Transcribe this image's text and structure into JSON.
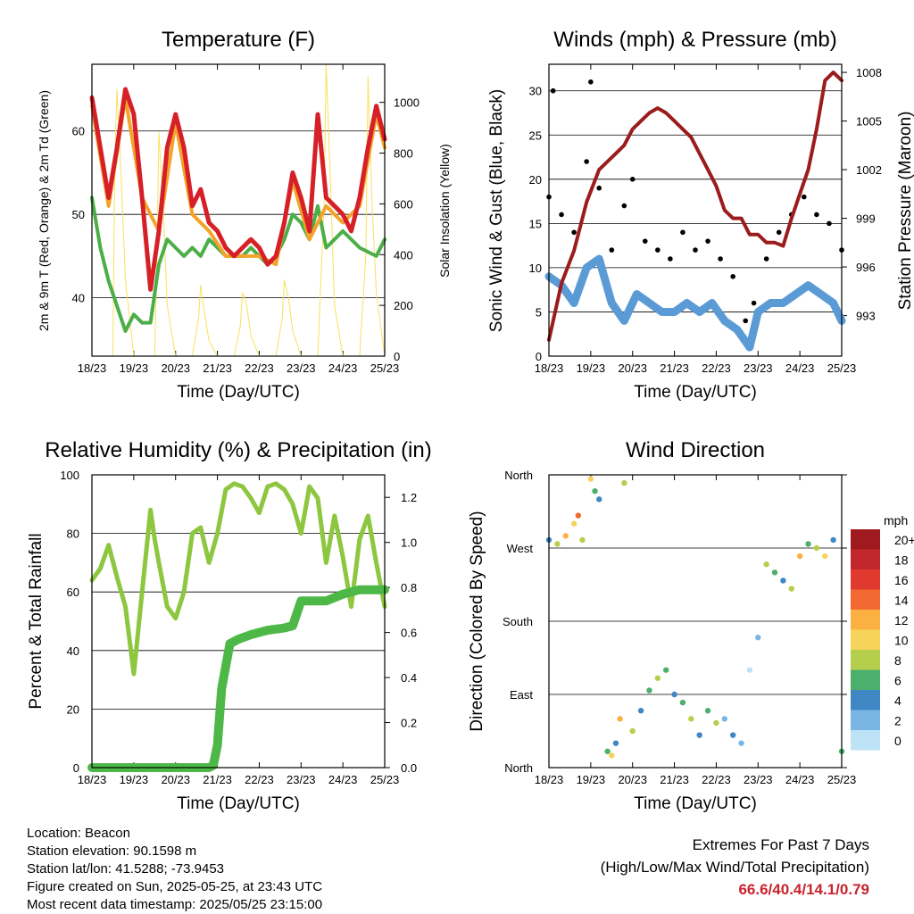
{
  "x_ticks": [
    "18/23",
    "19/23",
    "20/23",
    "21/23",
    "22/23",
    "23/23",
    "24/23",
    "25/23"
  ],
  "colors": {
    "red": "#d62027",
    "orange": "#f4a32a",
    "green": "#4cae47",
    "yellow": "#f7e15c",
    "black": "#000000",
    "blue": "#5b9bd5",
    "maroon": "#9b1c1c",
    "rh": "#8dc63f",
    "precip": "#4db848"
  },
  "chart_data": [
    {
      "id": "temperature",
      "type": "line",
      "title": "Temperature (F)",
      "xlabel": "Time (Day/UTC)",
      "ylabel": "2m & 9m T (Red, Orange) & 2m Td (Green)",
      "ylabel_right": "Solar Insolation (Yellow)",
      "ylim": [
        33,
        68
      ],
      "yticks": [
        40,
        50,
        60
      ],
      "ylim_right": [
        0,
        1150
      ],
      "yticks_right": [
        0,
        200,
        400,
        600,
        800,
        1000
      ],
      "series": [
        {
          "name": "2m T",
          "color": "red",
          "x": [
            0,
            0.2,
            0.4,
            0.6,
            0.8,
            1.0,
            1.2,
            1.4,
            1.6,
            1.8,
            2.0,
            2.2,
            2.4,
            2.6,
            2.8,
            3.0,
            3.2,
            3.4,
            3.6,
            3.8,
            4.0,
            4.2,
            4.4,
            4.6,
            4.8,
            5.0,
            5.2,
            5.4,
            5.6,
            5.8,
            6.0,
            6.2,
            6.4,
            6.6,
            6.8,
            7.0
          ],
          "y": [
            64,
            58,
            52,
            58,
            65,
            62,
            52,
            41,
            48,
            58,
            62,
            58,
            51,
            53,
            49,
            48,
            46,
            45,
            46,
            47,
            46,
            44,
            45,
            49,
            55,
            52,
            48,
            62,
            52,
            51,
            50,
            48,
            52,
            58,
            63,
            59
          ]
        },
        {
          "name": "9m T",
          "color": "orange",
          "x": [
            0,
            0.4,
            0.8,
            1.2,
            1.6,
            2.0,
            2.4,
            2.8,
            3.2,
            3.6,
            4.0,
            4.4,
            4.8,
            5.2,
            5.6,
            6.0,
            6.4,
            6.8,
            7.0
          ],
          "y": [
            63,
            51,
            64,
            52,
            48,
            61,
            50,
            48,
            45,
            45,
            45,
            44,
            54,
            47,
            51,
            49,
            51,
            62,
            58
          ]
        },
        {
          "name": "2m Td",
          "color": "green",
          "x": [
            0,
            0.2,
            0.4,
            0.6,
            0.8,
            1.0,
            1.2,
            1.4,
            1.6,
            1.8,
            2.0,
            2.2,
            2.4,
            2.6,
            2.8,
            3.0,
            3.2,
            3.4,
            3.6,
            3.8,
            4.0,
            4.2,
            4.4,
            4.6,
            4.8,
            5.0,
            5.2,
            5.4,
            5.6,
            5.8,
            6.0,
            6.4,
            6.8,
            7.0
          ],
          "y": [
            52,
            46,
            42,
            39,
            36,
            38,
            37,
            37,
            44,
            47,
            46,
            45,
            46,
            45,
            47,
            46,
            45,
            45,
            45,
            46,
            45,
            44,
            45,
            47,
            50,
            49,
            47,
            51,
            46,
            47,
            48,
            46,
            45,
            47
          ]
        },
        {
          "name": "Solar Insolation",
          "color": "yellow",
          "axis": "right",
          "x": [
            0,
            0.3,
            0.5,
            0.55,
            0.6,
            0.7,
            0.8,
            1.0,
            1.3,
            1.5,
            1.55,
            1.6,
            1.7,
            1.8,
            2.0,
            2.4,
            2.55,
            2.6,
            2.7,
            2.8,
            3.0,
            3.4,
            3.55,
            3.6,
            3.7,
            3.8,
            4.0,
            4.4,
            4.55,
            4.6,
            4.7,
            4.8,
            5.0,
            5.4,
            5.55,
            5.6,
            5.7,
            5.8,
            6.0,
            6.4,
            6.55,
            6.6,
            6.7,
            6.8,
            7.0
          ],
          "y": [
            0,
            0,
            0,
            800,
            1050,
            700,
            300,
            0,
            0,
            0,
            350,
            880,
            600,
            200,
            0,
            0,
            150,
            280,
            160,
            60,
            0,
            0,
            120,
            250,
            200,
            80,
            0,
            0,
            150,
            300,
            230,
            100,
            0,
            0,
            600,
            1150,
            700,
            200,
            0,
            0,
            400,
            1100,
            600,
            250,
            0
          ]
        }
      ]
    },
    {
      "id": "winds",
      "type": "scatter",
      "title": "Winds (mph) & Pressure (mb)",
      "xlabel": "Time (Day/UTC)",
      "ylabel": "Sonic Wind & Gust (Blue, Black)",
      "ylabel_right": "Station Pressure (Maroon)",
      "ylim": [
        0,
        33
      ],
      "yticks": [
        0,
        5,
        10,
        15,
        20,
        25,
        30
      ],
      "ylim_right": [
        990.5,
        1008.5
      ],
      "yticks_right": [
        993,
        996,
        999,
        1002,
        1005,
        1008
      ],
      "series": [
        {
          "name": "Sonic Wind",
          "color": "blue",
          "x": [
            0,
            0.3,
            0.6,
            0.9,
            1.2,
            1.5,
            1.8,
            2.1,
            2.4,
            2.7,
            3.0,
            3.3,
            3.6,
            3.9,
            4.2,
            4.5,
            4.8,
            5.0,
            5.3,
            5.6,
            5.9,
            6.2,
            6.5,
            6.8,
            7.0
          ],
          "y": [
            9,
            8,
            6,
            10,
            11,
            6,
            4,
            7,
            6,
            5,
            5,
            6,
            5,
            6,
            4,
            3,
            1,
            5,
            6,
            6,
            7,
            8,
            7,
            6,
            4
          ]
        },
        {
          "name": "Gust",
          "color": "black",
          "x": [
            0,
            0.1,
            0.3,
            0.6,
            0.9,
            1.0,
            1.2,
            1.5,
            1.8,
            2.0,
            2.3,
            2.6,
            2.9,
            3.2,
            3.5,
            3.8,
            4.1,
            4.4,
            4.7,
            4.9,
            5.2,
            5.5,
            5.8,
            6.1,
            6.4,
            6.7,
            7.0
          ],
          "y": [
            18,
            30,
            16,
            14,
            22,
            31,
            19,
            12,
            17,
            20,
            13,
            12,
            11,
            14,
            12,
            13,
            11,
            9,
            4,
            6,
            11,
            14,
            16,
            18,
            16,
            15,
            12
          ]
        },
        {
          "name": "Station Pressure",
          "color": "maroon",
          "axis": "right",
          "type": "line",
          "x": [
            0,
            0.3,
            0.6,
            0.9,
            1.2,
            1.4,
            1.6,
            1.8,
            2.0,
            2.2,
            2.4,
            2.6,
            2.8,
            3.0,
            3.2,
            3.4,
            3.6,
            3.8,
            4.0,
            4.2,
            4.4,
            4.6,
            4.8,
            5.0,
            5.2,
            5.4,
            5.6,
            5.8,
            6.0,
            6.2,
            6.4,
            6.6,
            6.8,
            7.0
          ],
          "y": [
            991.5,
            995,
            997,
            1000,
            1002,
            1002.5,
            1003,
            1003.5,
            1004.5,
            1005,
            1005.5,
            1005.8,
            1005.5,
            1005,
            1004.5,
            1004,
            1003,
            1002,
            1001,
            999.5,
            999,
            999,
            998,
            998,
            997.5,
            997.5,
            997.3,
            999,
            1000.5,
            1002,
            1004.5,
            1007.5,
            1008,
            1007.5
          ]
        }
      ]
    },
    {
      "id": "rh",
      "type": "line",
      "title": "Relative Humidity (%) & Precipitation (in)",
      "xlabel": "Time (Day/UTC)",
      "ylabel": "Percent & Total Rainfall",
      "ylim": [
        0,
        100
      ],
      "yticks": [
        0,
        20,
        40,
        60,
        80,
        100
      ],
      "ylim_right": [
        0,
        1.3
      ],
      "yticks_right": [
        "0.0",
        "0.2",
        "0.4",
        "0.6",
        "0.8",
        "1.0",
        "1.2"
      ],
      "series": [
        {
          "name": "Relative Humidity",
          "color": "rh",
          "x": [
            0,
            0.2,
            0.4,
            0.6,
            0.8,
            1.0,
            1.2,
            1.4,
            1.5,
            1.6,
            1.8,
            2.0,
            2.2,
            2.4,
            2.6,
            2.8,
            3.0,
            3.2,
            3.4,
            3.6,
            3.8,
            4.0,
            4.2,
            4.4,
            4.6,
            4.8,
            5.0,
            5.2,
            5.4,
            5.6,
            5.8,
            6.0,
            6.2,
            6.4,
            6.6,
            6.8,
            7.0
          ],
          "y": [
            64,
            68,
            76,
            65,
            55,
            32,
            60,
            88,
            78,
            70,
            55,
            51,
            60,
            80,
            82,
            70,
            80,
            95,
            97,
            96,
            92,
            87,
            96,
            97,
            95,
            90,
            80,
            96,
            92,
            70,
            86,
            72,
            55,
            78,
            86,
            70,
            55
          ]
        },
        {
          "name": "Total Precipitation",
          "color": "precip",
          "axis": "right",
          "x": [
            0,
            2.8,
            2.9,
            3.0,
            3.1,
            3.2,
            3.3,
            3.5,
            3.8,
            4.0,
            4.2,
            4.6,
            4.8,
            5.0,
            5.2,
            5.6,
            6.0,
            6.4,
            7.0
          ],
          "y": [
            0,
            0,
            0.01,
            0.1,
            0.35,
            0.45,
            0.55,
            0.57,
            0.59,
            0.6,
            0.61,
            0.62,
            0.63,
            0.74,
            0.74,
            0.74,
            0.77,
            0.79,
            0.79
          ]
        }
      ]
    },
    {
      "id": "direction",
      "type": "scatter",
      "title": "Wind Direction",
      "xlabel": "Time (Day/UTC)",
      "ylabel": "Direction (Colored By Speed)",
      "yticks_labels": [
        "North",
        "East",
        "South",
        "West",
        "North"
      ],
      "yticks_deg": [
        0,
        90,
        180,
        270,
        360
      ],
      "colorbar_title": "mph",
      "colorbar_labels": [
        "20+",
        "18",
        "16",
        "14",
        "12",
        "10",
        "8",
        "6",
        "4",
        "2",
        "0"
      ],
      "colorbar_colors": [
        "#9e1a1e",
        "#c1272d",
        "#e03a2f",
        "#f26a32",
        "#fbb042",
        "#f6d35b",
        "#b5cf4c",
        "#4daf6c",
        "#3e86c4",
        "#7ab6e4",
        "#bfe3f6"
      ],
      "series": [
        {
          "name": "Direction",
          "x": [
            0,
            0.2,
            0.4,
            0.6,
            0.7,
            0.8,
            1.0,
            1.1,
            1.2,
            1.4,
            1.5,
            1.6,
            1.7,
            1.8,
            2.0,
            2.2,
            2.4,
            2.6,
            2.8,
            3.0,
            3.2,
            3.4,
            3.6,
            3.8,
            4.0,
            4.2,
            4.4,
            4.6,
            4.8,
            5.0,
            5.2,
            5.4,
            5.6,
            5.8,
            6.0,
            6.2,
            6.4,
            6.6,
            6.8,
            7.0
          ],
          "y": [
            280,
            275,
            285,
            300,
            310,
            280,
            355,
            340,
            330,
            20,
            15,
            30,
            60,
            350,
            45,
            70,
            95,
            110,
            120,
            90,
            80,
            60,
            40,
            70,
            55,
            60,
            40,
            30,
            120,
            160,
            250,
            240,
            230,
            220,
            260,
            275,
            270,
            260,
            280,
            20
          ],
          "speed": [
            4,
            8,
            12,
            10,
            14,
            8,
            10,
            6,
            4,
            6,
            10,
            4,
            12,
            8,
            8,
            4,
            6,
            8,
            6,
            4,
            6,
            8,
            4,
            6,
            8,
            2,
            4,
            2,
            0,
            2,
            8,
            6,
            4,
            8,
            12,
            6,
            8,
            10,
            4,
            6
          ]
        }
      ]
    }
  ],
  "info": {
    "location": "Location: Beacon",
    "elevation": "Station elevation: 90.1598 m",
    "latlon": "Station lat/lon: 41.5288; -73.9453",
    "created": "Figure created on Sun, 2025-05-25, at 23:43 UTC",
    "recent": "Most recent data timestamp: 2025/05/25 23:15:00"
  },
  "extremes": {
    "line1": "Extremes For Past 7 Days",
    "line2": "(High/Low/Max Wind/Total Precipitation)",
    "values": "66.6/40.4/14.1/0.79"
  }
}
